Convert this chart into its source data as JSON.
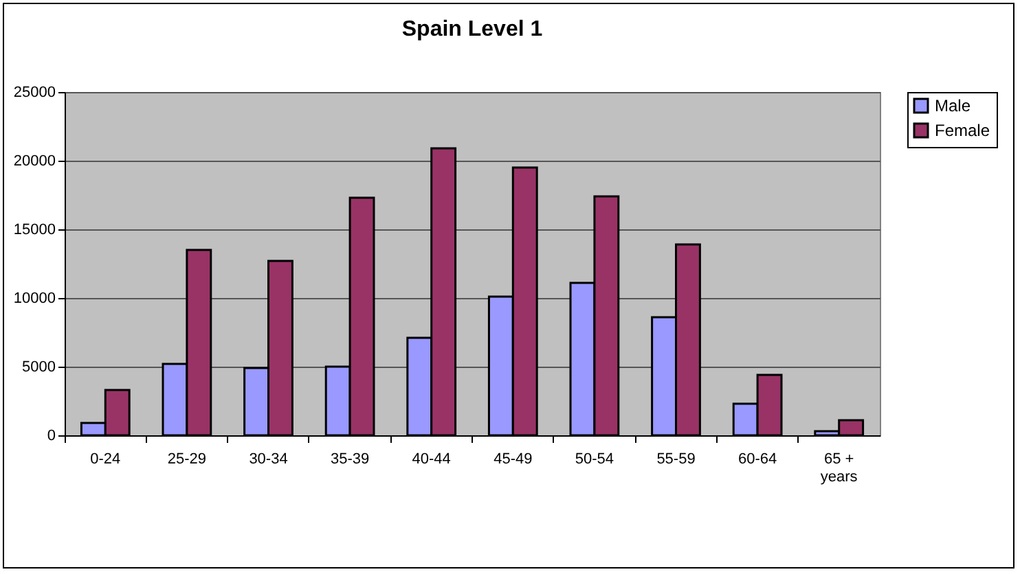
{
  "chart_data": {
    "type": "bar",
    "title": "Spain Level 1",
    "categories": [
      "0-24",
      "25-29",
      "30-34",
      "35-39",
      "40-44",
      "45-49",
      "50-54",
      "55-59",
      "60-64",
      "65 + years"
    ],
    "series": [
      {
        "name": "Male",
        "color": "#9999ff",
        "values": [
          900,
          5200,
          4900,
          5000,
          7100,
          10100,
          11100,
          8600,
          2300,
          300
        ]
      },
      {
        "name": "Female",
        "color": "#993366",
        "values": [
          3300,
          13500,
          12700,
          17300,
          20900,
          19500,
          17400,
          13900,
          4400,
          1100
        ]
      }
    ],
    "ylim": [
      0,
      25000
    ],
    "yticks": [
      0,
      5000,
      10000,
      15000,
      20000,
      25000
    ],
    "grid": "y",
    "legend": "right"
  }
}
